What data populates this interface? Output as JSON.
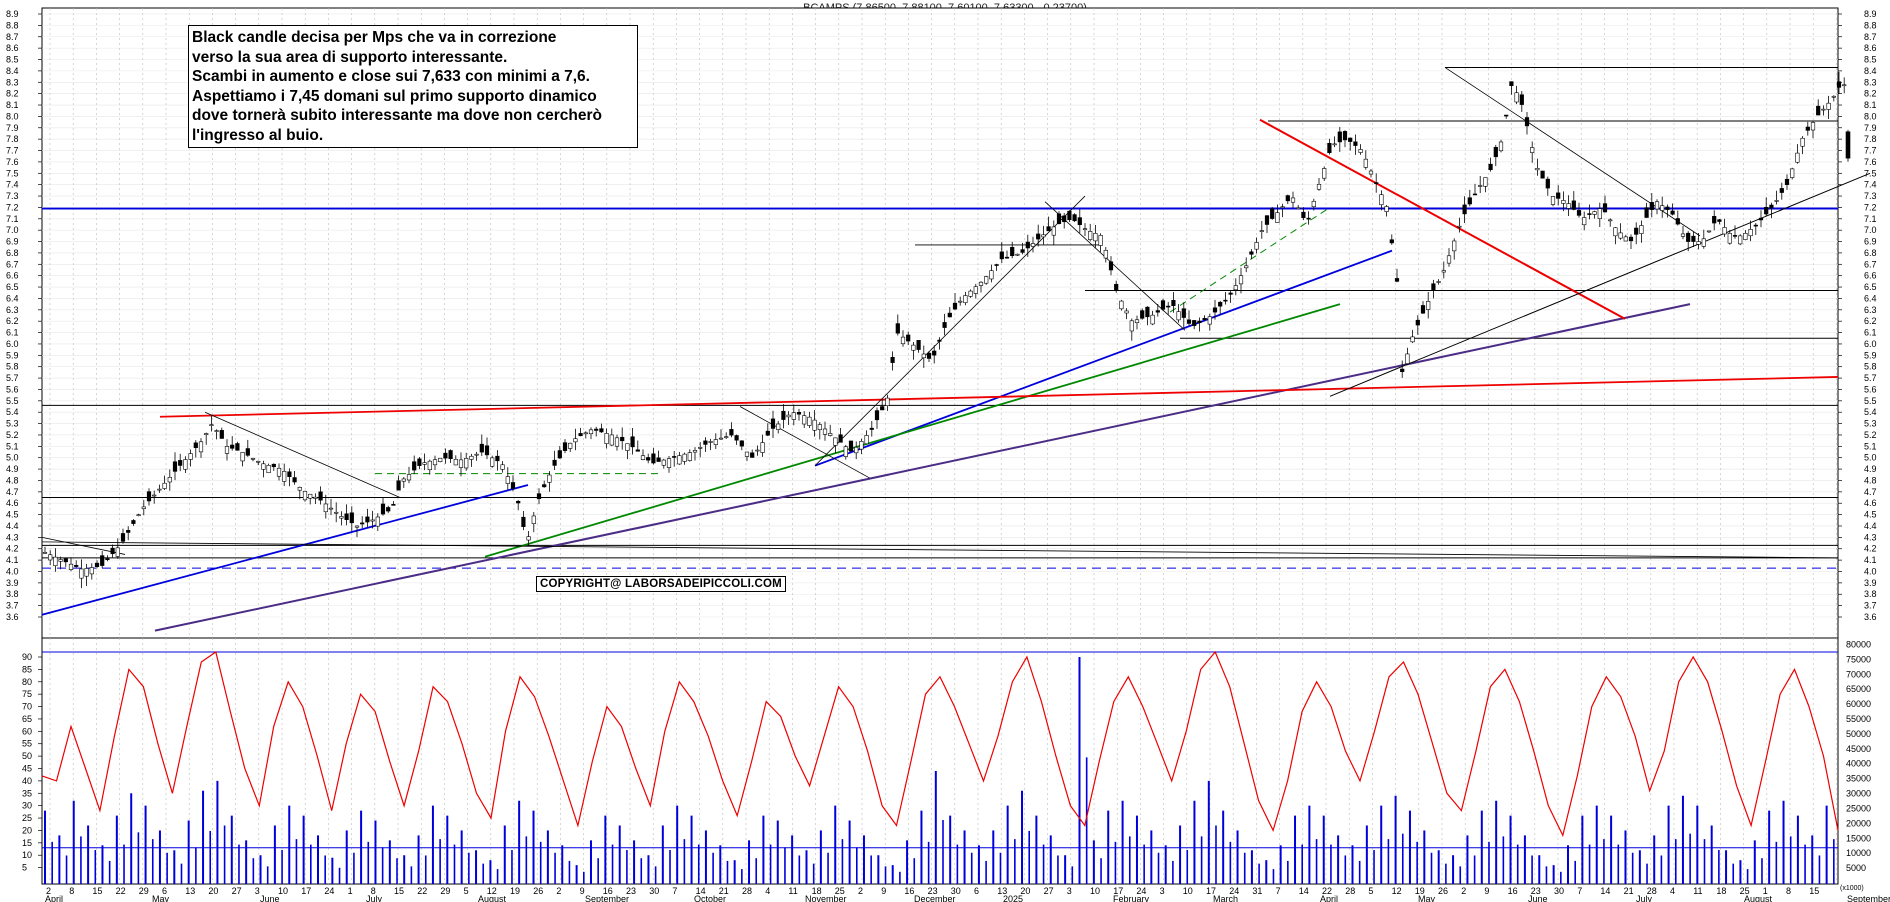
{
  "chart_data": [
    {
      "type": "candlestick",
      "title": "BCAMPS (7.86500, 7.88100, 7.60100, 7.63300, -0.23700)",
      "ylim": [
        3.5,
        8.95
      ],
      "y_ticks": [
        "3.6",
        "3.7",
        "3.8",
        "3.9",
        "4.0",
        "4.1",
        "4.2",
        "4.3",
        "4.4",
        "4.5",
        "4.6",
        "4.7",
        "4.8",
        "4.9",
        "5.0",
        "5.1",
        "5.2",
        "5.3",
        "5.4",
        "5.5",
        "5.6",
        "5.7",
        "5.8",
        "5.9",
        "6.0",
        "6.1",
        "6.2",
        "6.3",
        "6.4",
        "6.5",
        "6.6",
        "6.7",
        "6.8",
        "6.9",
        "7.0",
        "7.1",
        "7.2",
        "7.3",
        "7.4",
        "7.5",
        "7.6",
        "7.7",
        "7.8",
        "7.9",
        "8.0",
        "8.1",
        "8.2",
        "8.3",
        "8.4",
        "8.5",
        "8.6",
        "8.7",
        "8.8",
        "8.9"
      ],
      "grid": true,
      "last_candle": {
        "open": 7.865,
        "high": 7.881,
        "low": 7.601,
        "close": 7.633,
        "change": -0.237
      },
      "price_path": [
        [
          0,
          4.18
        ],
        [
          20,
          4.1
        ],
        [
          40,
          4.02
        ],
        [
          60,
          4.05
        ],
        [
          80,
          4.25
        ],
        [
          100,
          4.55
        ],
        [
          120,
          4.75
        ],
        [
          140,
          4.95
        ],
        [
          160,
          5.15
        ],
        [
          170,
          5.3
        ],
        [
          185,
          5.1
        ],
        [
          200,
          5.05
        ],
        [
          220,
          4.95
        ],
        [
          240,
          4.9
        ],
        [
          260,
          4.72
        ],
        [
          280,
          4.62
        ],
        [
          300,
          4.48
        ],
        [
          315,
          4.4
        ],
        [
          330,
          4.45
        ],
        [
          350,
          4.55
        ],
        [
          360,
          4.8
        ],
        [
          380,
          4.95
        ],
        [
          400,
          5.0
        ],
        [
          420,
          4.98
        ],
        [
          440,
          5.05
        ],
        [
          460,
          4.95
        ],
        [
          475,
          4.65
        ],
        [
          485,
          4.25
        ],
        [
          495,
          4.6
        ],
        [
          510,
          4.9
        ],
        [
          530,
          5.15
        ],
        [
          550,
          5.25
        ],
        [
          570,
          5.2
        ],
        [
          590,
          5.1
        ],
        [
          610,
          4.95
        ],
        [
          630,
          5.0
        ],
        [
          650,
          5.05
        ],
        [
          670,
          5.15
        ],
        [
          690,
          5.2
        ],
        [
          710,
          5.0
        ],
        [
          730,
          5.25
        ],
        [
          750,
          5.4
        ],
        [
          770,
          5.35
        ],
        [
          790,
          5.2
        ],
        [
          810,
          5.05
        ],
        [
          830,
          5.25
        ],
        [
          845,
          5.5
        ],
        [
          855,
          6.1
        ],
        [
          870,
          6.0
        ],
        [
          890,
          5.85
        ],
        [
          905,
          6.2
        ],
        [
          920,
          6.4
        ],
        [
          940,
          6.55
        ],
        [
          960,
          6.75
        ],
        [
          980,
          6.8
        ],
        [
          1000,
          6.95
        ],
        [
          1015,
          7.05
        ],
        [
          1030,
          7.1
        ],
        [
          1045,
          7.0
        ],
        [
          1060,
          6.95
        ],
        [
          1075,
          6.45
        ],
        [
          1090,
          6.2
        ],
        [
          1110,
          6.25
        ],
        [
          1130,
          6.35
        ],
        [
          1150,
          6.15
        ],
        [
          1170,
          6.25
        ],
        [
          1190,
          6.45
        ],
        [
          1205,
          6.7
        ],
        [
          1220,
          7.0
        ],
        [
          1235,
          7.15
        ],
        [
          1250,
          7.3
        ],
        [
          1265,
          7.05
        ],
        [
          1275,
          7.35
        ],
        [
          1290,
          7.75
        ],
        [
          1305,
          7.8
        ],
        [
          1320,
          7.7
        ],
        [
          1335,
          7.4
        ],
        [
          1345,
          7.2
        ],
        [
          1355,
          6.55
        ],
        [
          1360,
          5.75
        ],
        [
          1370,
          6.05
        ],
        [
          1380,
          6.25
        ],
        [
          1390,
          6.45
        ],
        [
          1400,
          6.6
        ],
        [
          1410,
          6.85
        ],
        [
          1420,
          7.1
        ],
        [
          1435,
          7.35
        ],
        [
          1450,
          7.55
        ],
        [
          1460,
          7.8
        ],
        [
          1470,
          8.3
        ],
        [
          1480,
          8.1
        ],
        [
          1495,
          7.55
        ],
        [
          1510,
          7.3
        ],
        [
          1525,
          7.25
        ],
        [
          1540,
          7.1
        ],
        [
          1560,
          7.2
        ],
        [
          1575,
          7.0
        ],
        [
          1590,
          6.9
        ],
        [
          1600,
          7.05
        ],
        [
          1615,
          7.25
        ],
        [
          1630,
          7.15
        ],
        [
          1645,
          6.9
        ],
        [
          1660,
          6.9
        ],
        [
          1675,
          7.1
        ],
        [
          1690,
          6.95
        ],
        [
          1700,
          6.95
        ],
        [
          1715,
          7.05
        ],
        [
          1730,
          7.2
        ],
        [
          1745,
          7.4
        ],
        [
          1760,
          7.8
        ],
        [
          1775,
          8.0
        ],
        [
          1790,
          8.15
        ],
        [
          1800,
          8.3
        ],
        [
          1810,
          8.2
        ],
        [
          1820,
          8.1
        ],
        [
          1830,
          7.95
        ],
        [
          1840,
          7.9
        ],
        [
          1850,
          7.65
        ]
      ],
      "support_lines": [
        4.03,
        4.12,
        4.23,
        4.65,
        5.46,
        6.05,
        6.47,
        7.19,
        7.96,
        8.43
      ]
    },
    {
      "type": "line+bar",
      "series": [
        {
          "type": "line",
          "values": [
            42,
            40,
            62,
            45,
            28,
            58,
            85,
            78,
            55,
            35,
            62,
            88,
            92,
            68,
            45,
            30,
            62,
            80,
            70,
            50,
            28,
            55,
            75,
            68,
            48,
            30,
            52,
            78,
            72,
            55,
            35,
            25,
            60,
            82,
            74,
            58,
            40,
            22,
            48,
            70,
            62,
            45,
            30,
            60,
            80,
            72,
            58,
            40,
            26,
            48,
            72,
            66,
            50,
            38,
            58,
            78,
            70,
            52,
            30,
            22,
            48,
            75,
            82,
            70,
            55,
            40,
            58,
            80,
            90,
            72,
            50,
            30,
            22,
            48,
            72,
            82,
            70,
            55,
            40,
            60,
            85,
            92,
            78,
            55,
            32,
            20,
            40,
            68,
            80,
            70,
            52,
            40,
            60,
            82,
            88,
            75,
            55,
            35,
            28,
            52,
            78,
            85,
            72,
            52,
            30,
            18,
            42,
            70,
            82,
            74,
            58,
            36,
            52,
            80,
            90,
            80,
            60,
            38,
            22,
            48,
            75,
            85,
            70,
            50,
            20
          ]
        },
        {
          "type": "bar",
          "values": [
            28,
            18,
            32,
            22,
            14,
            26,
            35,
            30,
            20,
            12,
            24,
            36,
            40,
            26,
            16,
            10,
            22,
            30,
            26,
            18,
            9,
            20,
            28,
            24,
            16,
            10,
            18,
            30,
            26,
            20,
            12,
            8,
            22,
            32,
            28,
            20,
            14,
            6,
            16,
            26,
            22,
            16,
            10,
            22,
            30,
            26,
            20,
            14,
            8,
            16,
            26,
            24,
            18,
            12,
            20,
            30,
            24,
            18,
            10,
            6,
            16,
            28,
            44,
            26,
            20,
            14,
            20,
            30,
            36,
            26,
            18,
            10,
            90,
            16,
            28,
            32,
            26,
            20,
            14,
            22,
            32,
            40,
            28,
            20,
            12,
            8,
            14,
            26,
            30,
            26,
            18,
            14,
            22,
            30,
            34,
            28,
            20,
            12,
            10,
            18,
            28,
            32,
            26,
            18,
            10,
            6,
            14,
            26,
            30,
            26,
            20,
            12,
            18,
            30,
            34,
            30,
            22,
            12,
            8,
            16,
            28,
            32,
            26,
            18,
            30
          ]
        }
      ],
      "ylim_left": [
        0,
        95
      ],
      "left_ticks": [
        "5",
        "10",
        "15",
        "20",
        "25",
        "30",
        "35",
        "40",
        "45",
        "50",
        "55",
        "60",
        "65",
        "70",
        "75",
        "80",
        "85",
        "90"
      ],
      "right_ticks": [
        "5000",
        "10000",
        "15000",
        "20000",
        "25000",
        "30000",
        "35000",
        "40000",
        "45000",
        "50000",
        "55000",
        "60000",
        "65000",
        "70000",
        "75000",
        "80000"
      ],
      "right_unit": "(x1000)",
      "ref_levels": [
        13,
        92
      ]
    }
  ],
  "x_axis": {
    "month_labels": [
      "April",
      "May",
      "June",
      "July",
      "August",
      "September",
      "October",
      "November",
      "December",
      "2025",
      "February",
      "March",
      "April",
      "May",
      "June",
      "July",
      "August",
      "September"
    ],
    "day_labels": [
      "2",
      "8",
      "15",
      "22",
      "29",
      "6",
      "13",
      "20",
      "27",
      "3",
      "10",
      "17",
      "24",
      "1",
      "8",
      "15",
      "22",
      "29",
      "5",
      "12",
      "19",
      "26",
      "2",
      "9",
      "16",
      "23",
      "30",
      "7",
      "14",
      "21",
      "28",
      "4",
      "11",
      "18",
      "25",
      "2",
      "9",
      "16",
      "23",
      "30",
      "6",
      "13",
      "20",
      "27",
      "3",
      "10",
      "17",
      "24",
      "3",
      "10",
      "17",
      "24",
      "31",
      "7",
      "14",
      "22",
      "28",
      "5",
      "12",
      "19",
      "26",
      "2",
      "9",
      "16",
      "23",
      "30",
      "7",
      "14",
      "21",
      "28",
      "4",
      "11",
      "18",
      "25",
      "1",
      "8",
      "15"
    ]
  },
  "annotation": {
    "text": "Black candle decisa per Mps che va in correzione\nverso la sua area di supporto interessante.\nScambi in aumento e close sui 7,633 con minimi a 7,6.\nAspettiamo i 7,45 domani sul primo supporto dinamico\ndove tornerà subito interessante ma dove non cercherò\nl'ingresso al buio."
  },
  "copyright": "COPYRIGHT@ LABORSADEIPICCOLI.COM",
  "colors": {
    "up": "#ffffff",
    "down": "#000000",
    "red": "#ee0000",
    "blue": "#0000dd",
    "green": "#008800",
    "purple": "#4b2c86",
    "grid": "#bbbbbb"
  }
}
